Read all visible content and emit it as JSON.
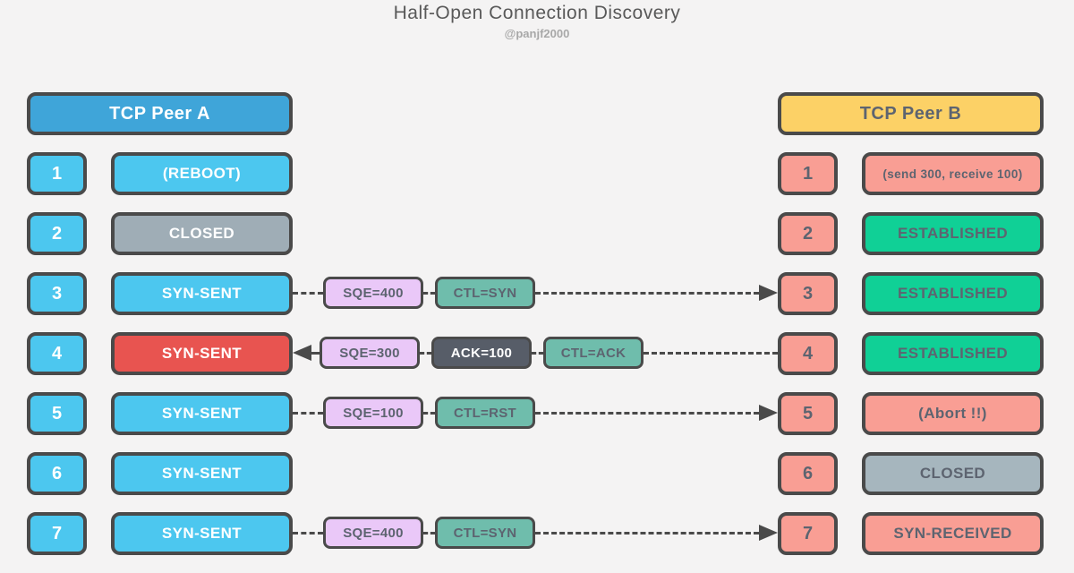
{
  "title": "Half-Open Connection Discovery",
  "subtitle": "@panjf2000",
  "colors": {
    "bg": "#f4f3f3",
    "ink": "#4a4a4a",
    "white": "#ffffff",
    "header_a": "#3fa5d9",
    "blue": "#4cc7ef",
    "red": "#e85450",
    "gray_a": "#9fadb6",
    "header_b": "#fcd166",
    "salmon": "#f99e94",
    "green": "#10d096",
    "gray_b": "#a6b6be",
    "lavender": "#eac8f8",
    "teal": "#6fbdac",
    "slate": "#575d68",
    "dark_text": "#5d6470",
    "title_text": "#595959",
    "subtitle_text": "#a8a8a8"
  },
  "peer_a": {
    "header": "TCP Peer A",
    "rows": [
      {
        "num": "1",
        "label": "(REBOOT)"
      },
      {
        "num": "2",
        "label": "CLOSED"
      },
      {
        "num": "3",
        "label": "SYN-SENT"
      },
      {
        "num": "4",
        "label": "SYN-SENT"
      },
      {
        "num": "5",
        "label": "SYN-SENT"
      },
      {
        "num": "6",
        "label": "SYN-SENT"
      },
      {
        "num": "7",
        "label": "SYN-SENT"
      }
    ]
  },
  "peer_b": {
    "header": "TCP Peer B",
    "rows": [
      {
        "num": "1",
        "label": "(send 300, receive 100)"
      },
      {
        "num": "2",
        "label": "ESTABLISHED"
      },
      {
        "num": "3",
        "label": "ESTABLISHED"
      },
      {
        "num": "4",
        "label": "ESTABLISHED"
      },
      {
        "num": "5",
        "label": "(Abort !!)"
      },
      {
        "num": "6",
        "label": "CLOSED"
      },
      {
        "num": "7",
        "label": "SYN-RECEIVED"
      }
    ]
  },
  "messages": {
    "row3": {
      "seq": "SQE=400",
      "ctl": "CTL=SYN",
      "direction": "right"
    },
    "row4": {
      "seq": "SQE=300",
      "ack": "ACK=100",
      "ctl": "CTL=ACK",
      "direction": "left"
    },
    "row5": {
      "seq": "SQE=100",
      "ctl": "CTL=RST",
      "direction": "right"
    },
    "row7": {
      "seq": "SQE=400",
      "ctl": "CTL=SYN",
      "direction": "right"
    }
  }
}
